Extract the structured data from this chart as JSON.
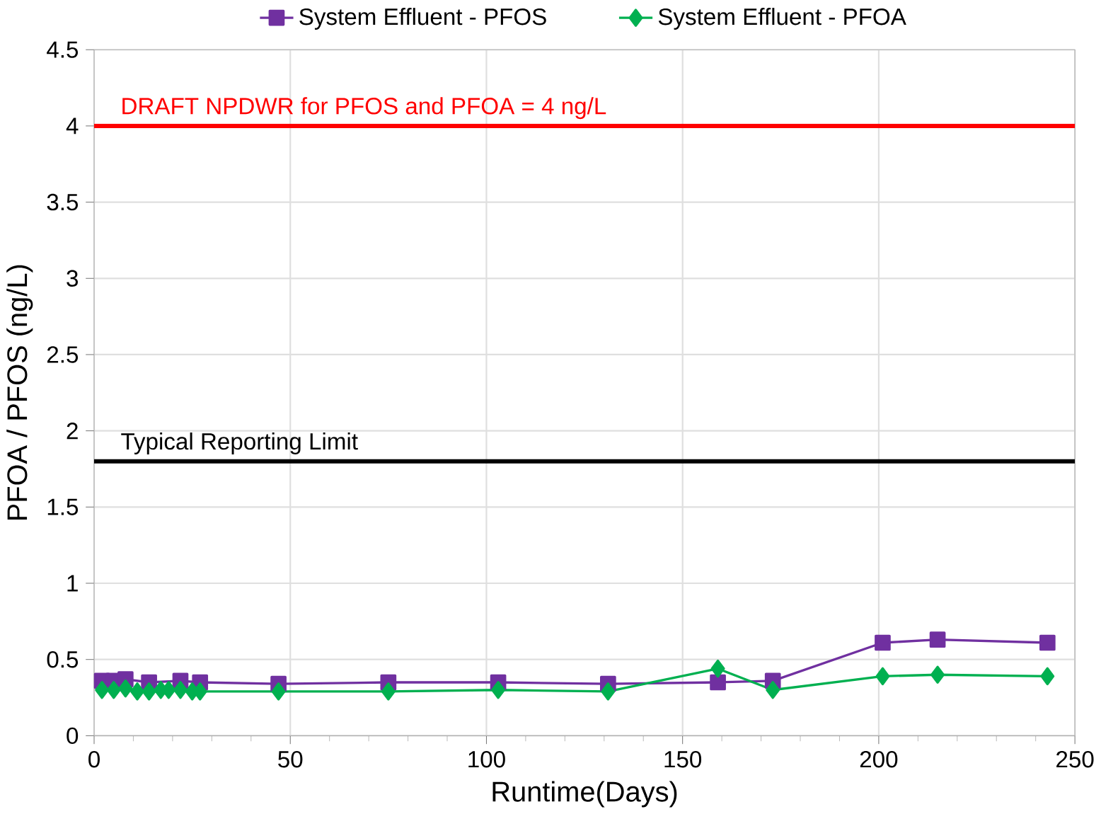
{
  "chart_data": {
    "type": "line",
    "xlabel": "Runtime(Days)",
    "ylabel": "PFOA / PFOS (ng/L)",
    "x": [
      2,
      5,
      8,
      11,
      14,
      17,
      19,
      22,
      25,
      27,
      47,
      75,
      103,
      131,
      159,
      173,
      201,
      215,
      243
    ],
    "series": [
      {
        "name": "System Effluent - PFOS",
        "color": "#7030a0",
        "marker": "square",
        "values": [
          0.36,
          0.36,
          0.37,
          null,
          0.35,
          null,
          null,
          0.36,
          null,
          0.35,
          0.34,
          0.35,
          0.35,
          0.34,
          0.35,
          0.36,
          0.61,
          0.63,
          0.61
        ]
      },
      {
        "name": "System Effluent - PFOA",
        "color": "#00b050",
        "marker": "diamond",
        "values": [
          0.3,
          0.3,
          0.31,
          0.29,
          0.29,
          0.3,
          0.3,
          0.3,
          0.29,
          0.29,
          0.29,
          0.29,
          0.3,
          0.29,
          0.44,
          0.3,
          0.39,
          0.4,
          0.39
        ]
      }
    ],
    "xlim": [
      0,
      250
    ],
    "xticks": [
      0,
      50,
      100,
      150,
      200,
      250
    ],
    "ylim": [
      0,
      4.5
    ],
    "yticks": [
      0,
      0.5,
      1,
      1.5,
      2,
      2.5,
      3,
      3.5,
      4,
      4.5
    ],
    "ref_lines": [
      {
        "axis": "y",
        "value": 4,
        "label": "DRAFT NPDWR for PFOS and PFOA = 4 ng/L",
        "color": "#ff0000"
      },
      {
        "axis": "y",
        "value": 1.8,
        "label": "Typical Reporting Limit",
        "color": "#000000"
      }
    ],
    "grid": true,
    "legend": "top"
  }
}
